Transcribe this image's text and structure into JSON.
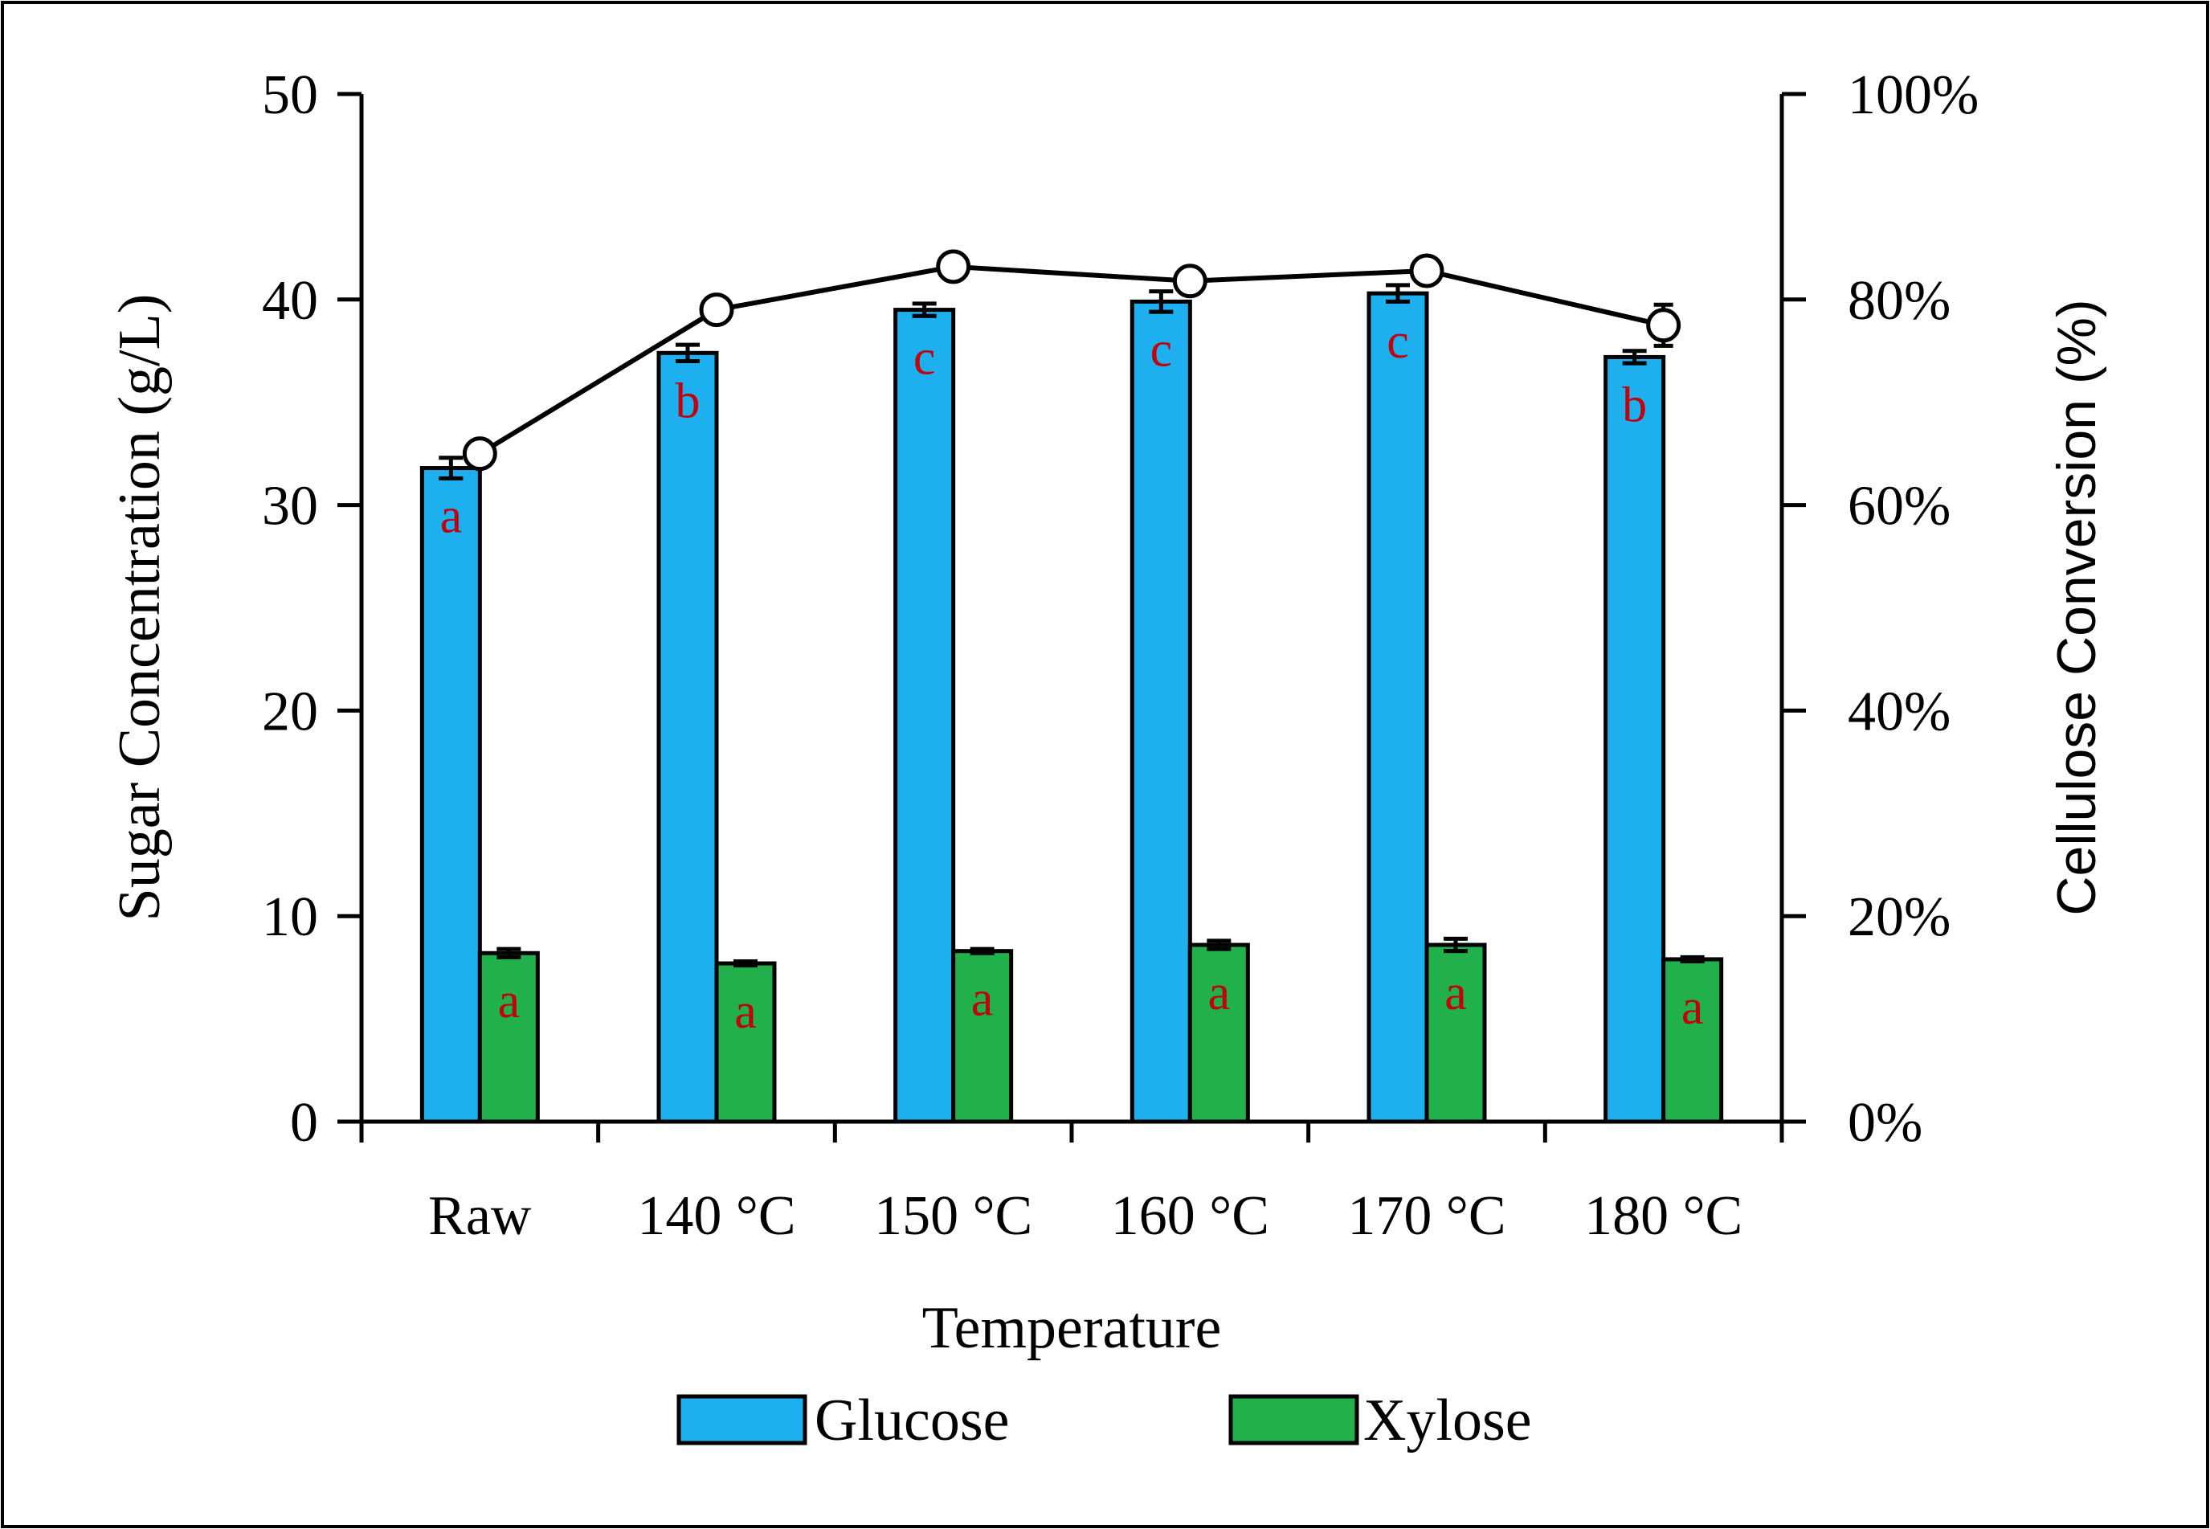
{
  "chart_data": {
    "type": "bar",
    "title": "",
    "xlabel": "Temperature",
    "ylabel": "Sugar Concentration (g/L)",
    "y2label": "Cellulose Conversion (%)",
    "categories": [
      "Raw",
      "140 °C",
      "150 °C",
      "160 °C",
      "170 °C",
      "180 °C"
    ],
    "ylim": [
      0,
      50
    ],
    "yticks": [
      "0",
      "10",
      "20",
      "30",
      "40",
      "50"
    ],
    "y2lim": [
      0,
      100
    ],
    "y2ticks": [
      "0%",
      "20%",
      "40%",
      "60%",
      "80%",
      "100%"
    ],
    "series": [
      {
        "name": "Glucose",
        "kind": "bar",
        "color": "#1EB0EE",
        "values": [
          31.8,
          37.4,
          39.5,
          39.9,
          40.3,
          37.2
        ],
        "errors": [
          0.5,
          0.4,
          0.3,
          0.5,
          0.4,
          0.3
        ],
        "labels": [
          "a",
          "b",
          "c",
          "c",
          "c",
          "b"
        ]
      },
      {
        "name": "Xylose",
        "kind": "bar",
        "color": "#21B04B",
        "values": [
          8.2,
          7.7,
          8.3,
          8.6,
          8.6,
          7.9
        ],
        "errors": [
          0.2,
          0.1,
          0.1,
          0.2,
          0.3,
          0.1
        ],
        "labels": [
          "a",
          "a",
          "a",
          "a",
          "a",
          "a"
        ]
      },
      {
        "name": "Cellulose Conversion",
        "kind": "line",
        "axis": "right",
        "color": "#000000",
        "values": [
          65.0,
          79.0,
          83.2,
          81.8,
          82.8,
          77.5
        ],
        "errors": [
          0.8,
          0.8,
          0.6,
          0.8,
          0.8,
          2.0
        ]
      }
    ],
    "legend": [
      "Glucose",
      "Xylose"
    ],
    "legend_position": "bottom",
    "significance_label_color": "#C0000C"
  }
}
